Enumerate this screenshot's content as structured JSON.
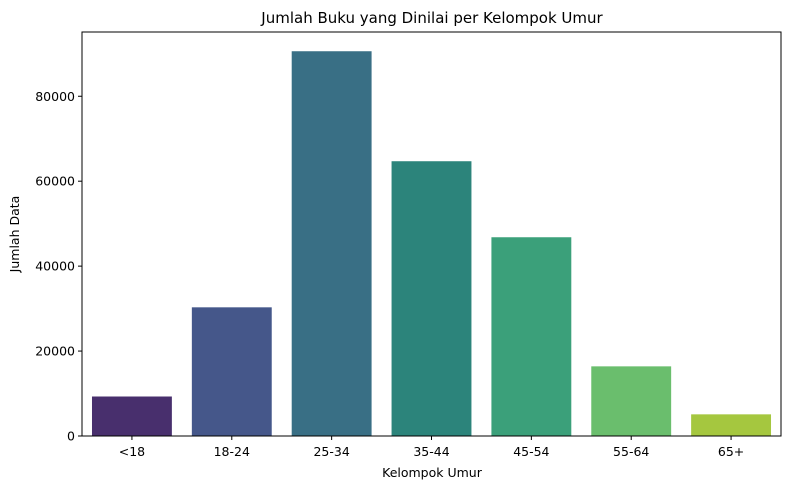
{
  "chart_data": {
    "type": "bar",
    "title": "Jumlah Buku yang Dinilai per Kelompok Umur",
    "xlabel": "Kelompok Umur",
    "ylabel": "Jumlah Data",
    "categories": [
      "<18",
      "18-24",
      "25-34",
      "35-44",
      "45-54",
      "55-64",
      "65+"
    ],
    "values": [
      9300,
      30300,
      90600,
      64700,
      46800,
      16400,
      5100
    ],
    "ylim": [
      0,
      95130
    ],
    "yticks": [
      0,
      20000,
      40000,
      60000,
      80000
    ],
    "ytick_labels": [
      "0",
      "20000",
      "40000",
      "60000",
      "80000"
    ],
    "colors": [
      "#482f6d",
      "#45578a",
      "#396f85",
      "#2c847b",
      "#3ba07a",
      "#6abe6d",
      "#a5c73f"
    ],
    "grid": false,
    "legend": "none"
  }
}
